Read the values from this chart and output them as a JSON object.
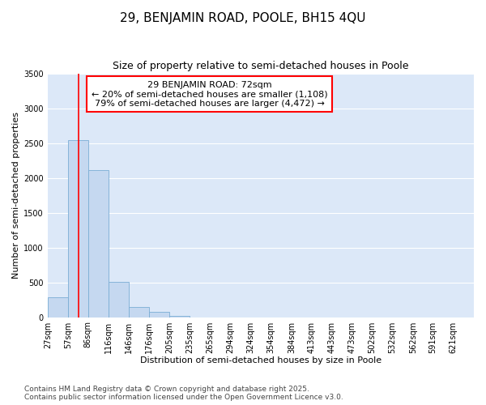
{
  "title": "29, BENJAMIN ROAD, POOLE, BH15 4QU",
  "subtitle": "Size of property relative to semi-detached houses in Poole",
  "xlabel": "Distribution of semi-detached houses by size in Poole",
  "ylabel": "Number of semi-detached properties",
  "footer_line1": "Contains HM Land Registry data © Crown copyright and database right 2025.",
  "footer_line2": "Contains public sector information licensed under the Open Government Licence v3.0.",
  "annotation_line1": "29 BENJAMIN ROAD: 72sqm",
  "annotation_line2": "← 20% of semi-detached houses are smaller (1,108)",
  "annotation_line3": "79% of semi-detached houses are larger (4,472) →",
  "bar_color": "#c5d8f0",
  "bar_edge_color": "#7aadd4",
  "plot_bg_color": "#dce8f8",
  "fig_bg_color": "#ffffff",
  "grid_color": "#ffffff",
  "red_line_x": 72,
  "categories": [
    "27sqm",
    "57sqm",
    "86sqm",
    "116sqm",
    "146sqm",
    "176sqm",
    "205sqm",
    "235sqm",
    "265sqm",
    "294sqm",
    "324sqm",
    "354sqm",
    "384sqm",
    "413sqm",
    "443sqm",
    "473sqm",
    "502sqm",
    "532sqm",
    "562sqm",
    "591sqm",
    "621sqm"
  ],
  "bin_edges": [
    27,
    57,
    86,
    116,
    146,
    176,
    205,
    235,
    265,
    294,
    324,
    354,
    384,
    413,
    443,
    473,
    502,
    532,
    562,
    591,
    621
  ],
  "values": [
    290,
    2540,
    2110,
    510,
    150,
    75,
    20,
    0,
    0,
    0,
    0,
    0,
    0,
    0,
    0,
    0,
    0,
    0,
    0,
    0,
    0
  ],
  "ylim": [
    0,
    3500
  ],
  "yticks": [
    0,
    500,
    1000,
    1500,
    2000,
    2500,
    3000,
    3500
  ],
  "title_fontsize": 11,
  "subtitle_fontsize": 9,
  "tick_fontsize": 7,
  "label_fontsize": 8,
  "annotation_fontsize": 8,
  "footer_fontsize": 6.5
}
